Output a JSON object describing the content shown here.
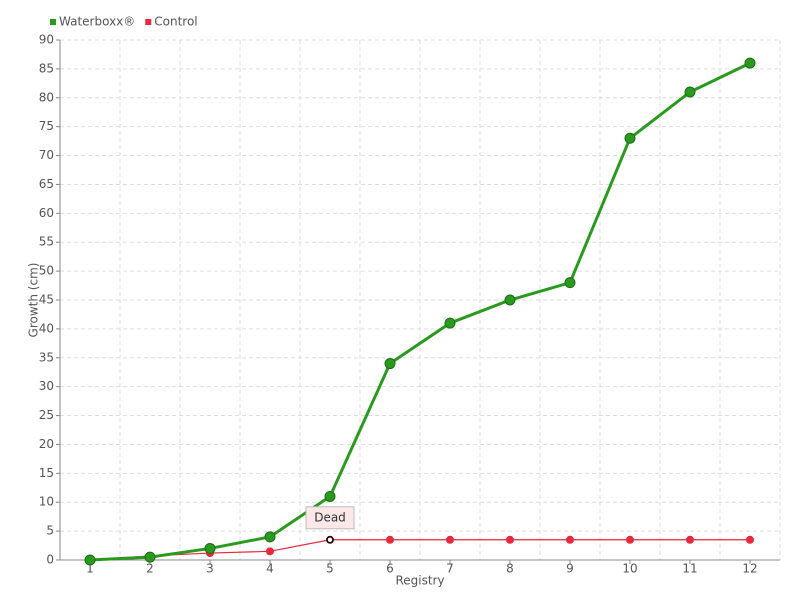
{
  "chart_data": {
    "type": "line",
    "categories": [
      "1",
      "2",
      "3",
      "4",
      "5",
      "6",
      "7",
      "8",
      "9",
      "10",
      "11",
      "12"
    ],
    "series": [
      {
        "name": "Waterboxx®",
        "color": "#2a9a1e",
        "values": [
          0,
          0.5,
          2,
          4,
          11,
          34,
          41,
          45,
          48,
          73,
          81,
          86
        ]
      },
      {
        "name": "Control",
        "color": "#e8283c",
        "values": [
          0,
          0.7,
          1.2,
          1.5,
          3.5,
          3.5,
          3.5,
          3.5,
          3.5,
          3.5,
          3.5,
          3.5
        ]
      }
    ],
    "x_label": "Registry",
    "y_label": "Growth (cm)",
    "ylim": [
      0,
      90
    ],
    "yticks": [
      0,
      5,
      10,
      15,
      20,
      25,
      30,
      35,
      40,
      45,
      50,
      55,
      60,
      65,
      70,
      75,
      80,
      85,
      90
    ],
    "grid": true,
    "legend": "top-left",
    "annotations": [
      {
        "text": "Dead",
        "x": "5",
        "y": 3.5
      }
    ]
  }
}
